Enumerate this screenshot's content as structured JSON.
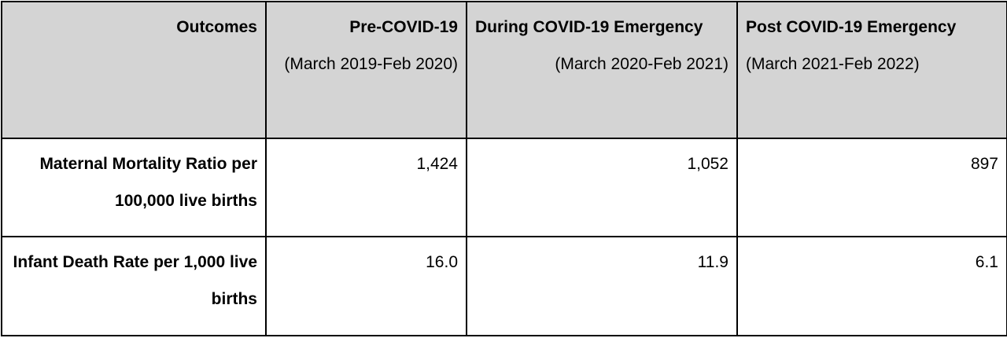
{
  "table": {
    "headers": [
      {
        "title": "Outcomes",
        "subtitle": ""
      },
      {
        "title": "Pre-COVID-19",
        "subtitle": "(March 2019-Feb 2020)"
      },
      {
        "title": "During COVID-19 Emergency",
        "subtitle": "(March 2020-Feb 2021)"
      },
      {
        "title": "Post COVID-19 Emergency",
        "subtitle": "(March 2021-Feb 2022)"
      }
    ],
    "rows": [
      {
        "label": "Maternal Mortality Ratio per 100,000 live births",
        "values": [
          "1,424",
          "1,052",
          "897"
        ]
      },
      {
        "label": "Infant Death Rate per 1,000 live births",
        "values": [
          "16.0",
          "11.9",
          "6.1"
        ]
      }
    ]
  },
  "colors": {
    "header_background": "#d4d4d4",
    "border": "#000000"
  }
}
